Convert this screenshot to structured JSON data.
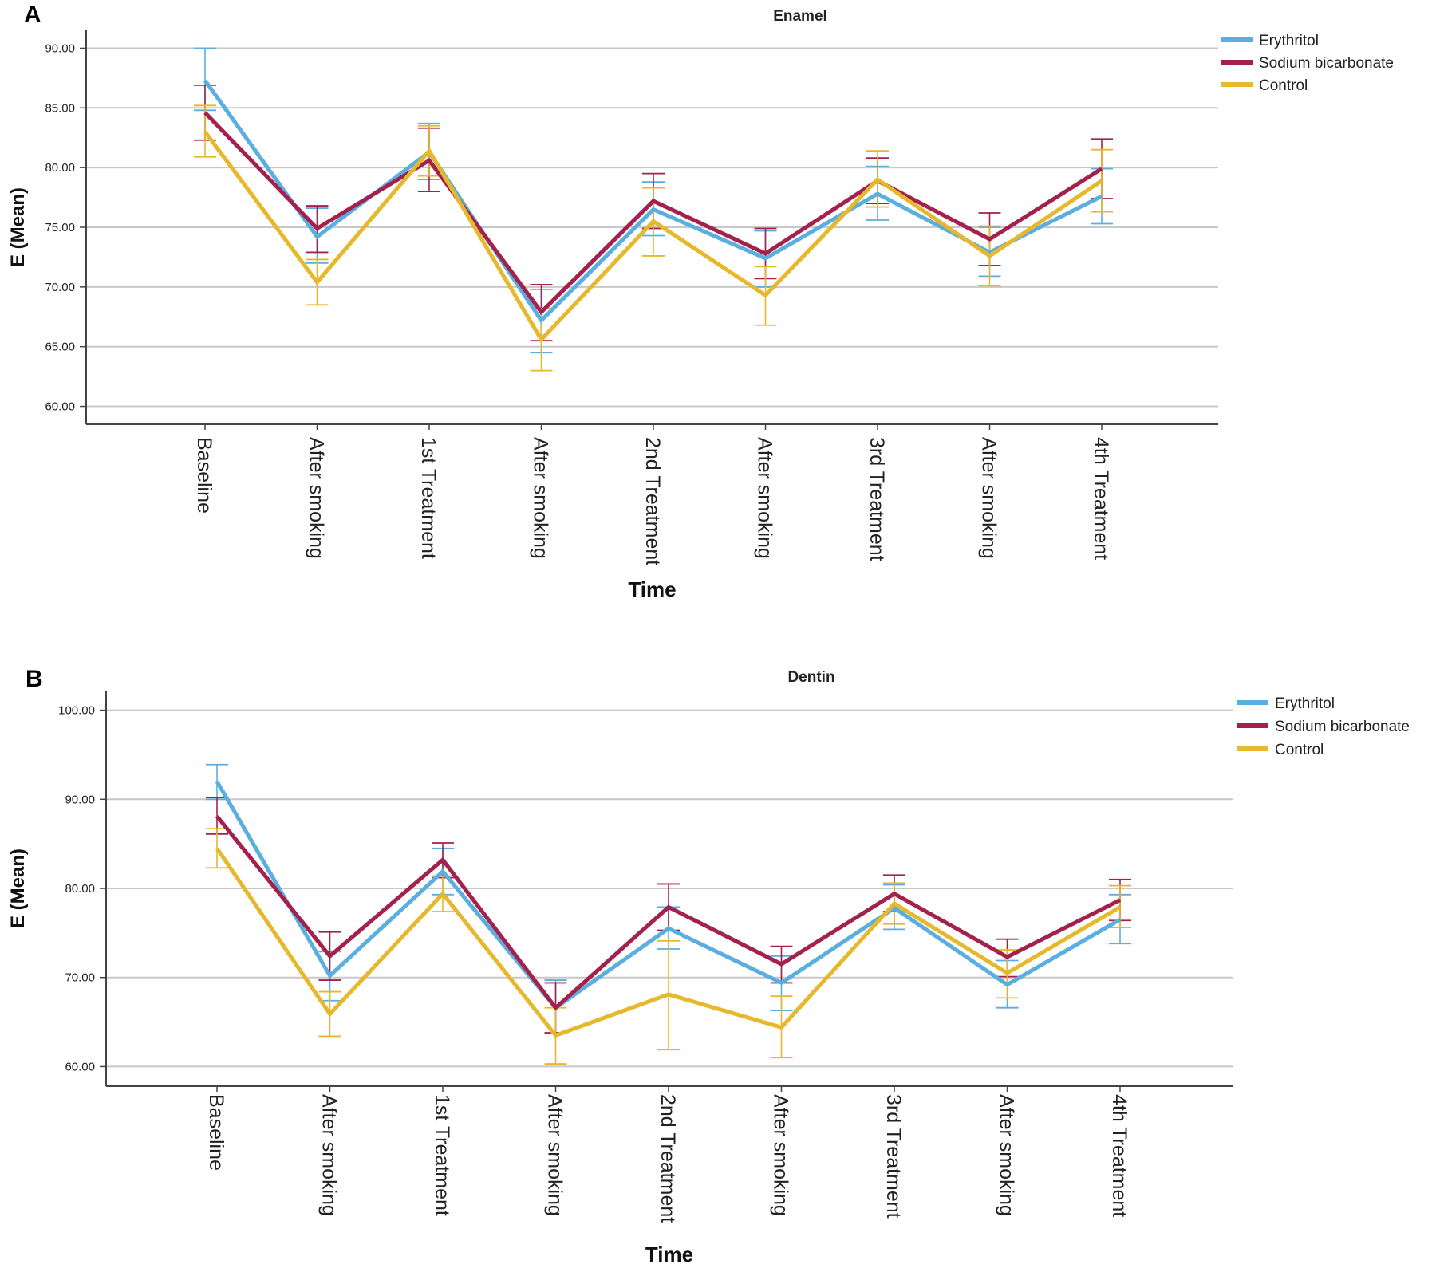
{
  "figure": {
    "panels": [
      {
        "letter": "A"
      },
      {
        "letter": "B"
      }
    ]
  },
  "colors": {
    "erythritol": "#5aaee0",
    "sodium_bicarbonate": "#a3214c",
    "control": "#e6b82b",
    "grid": "#c8c8c8",
    "axis": "#444444"
  },
  "chart_data": [
    {
      "type": "line",
      "title": "Enamel",
      "xlabel": "Time",
      "ylabel": "E (Mean)",
      "categories": [
        "Baseline",
        "After smoking",
        "1st Treatment",
        "After smoking",
        "2nd Treatment",
        "After smoking",
        "3rd Treatment",
        "After smoking",
        "4th Treatment"
      ],
      "ylim": [
        58.5,
        91.5
      ],
      "yticks": [
        60,
        65,
        70,
        75,
        80,
        85,
        90
      ],
      "ytick_labels": [
        "60.00",
        "65.00",
        "70.00",
        "75.00",
        "80.00",
        "85.00",
        "90.00"
      ],
      "grid": true,
      "legend_position": "top-right",
      "error_bars": true,
      "series": [
        {
          "name": "Erythritol",
          "color": "#5aaee0",
          "values": [
            87.3,
            74.2,
            81.3,
            67.2,
            76.5,
            72.4,
            77.8,
            72.9,
            77.6
          ],
          "err_low": [
            84.8,
            72.0,
            79.0,
            64.5,
            74.3,
            70.0,
            75.6,
            70.9,
            75.3
          ],
          "err_high": [
            90.0,
            76.6,
            83.7,
            69.8,
            78.8,
            74.7,
            80.1,
            75.0,
            79.9
          ]
        },
        {
          "name": "Sodium bicarbonate",
          "color": "#a3214c",
          "values": [
            84.6,
            74.9,
            80.6,
            67.9,
            77.2,
            72.8,
            78.9,
            74.0,
            79.9
          ],
          "err_low": [
            82.3,
            72.9,
            78.0,
            65.5,
            74.9,
            70.7,
            77.0,
            71.8,
            77.4
          ],
          "err_high": [
            86.9,
            76.8,
            83.3,
            70.2,
            79.5,
            74.9,
            80.8,
            76.2,
            82.4
          ]
        },
        {
          "name": "Control",
          "color": "#e6b82b",
          "values": [
            83.0,
            70.4,
            81.4,
            65.6,
            75.5,
            69.3,
            79.0,
            72.6,
            78.9
          ],
          "err_low": [
            80.9,
            68.5,
            79.3,
            63.0,
            72.6,
            66.8,
            76.7,
            70.1,
            76.3
          ],
          "err_high": [
            85.2,
            72.3,
            83.5,
            68.2,
            78.3,
            71.7,
            81.4,
            75.1,
            81.5
          ]
        }
      ]
    },
    {
      "type": "line",
      "title": "Dentin",
      "xlabel": "Time",
      "ylabel": "E (Mean)",
      "categories": [
        "Baseline",
        "After smoking",
        "1st Treatment",
        "After smoking",
        "2nd Treatment",
        "After smoking",
        "3rd Treatment",
        "After smoking",
        "4th Treatment"
      ],
      "ylim": [
        57.8,
        102.2
      ],
      "yticks": [
        60,
        70,
        80,
        90,
        100
      ],
      "ytick_labels": [
        "60.00",
        "70.00",
        "80.00",
        "90.00",
        "100.00"
      ],
      "grid": true,
      "legend_position": "top-right",
      "error_bars": true,
      "series": [
        {
          "name": "Erythritol",
          "color": "#5aaee0",
          "values": [
            92.0,
            70.2,
            81.9,
            66.6,
            75.5,
            69.4,
            77.8,
            69.2,
            76.5
          ],
          "err_low": [
            90.0,
            67.4,
            79.3,
            63.7,
            73.2,
            66.3,
            75.4,
            66.6,
            73.8
          ],
          "err_high": [
            93.9,
            72.9,
            84.5,
            69.7,
            77.9,
            72.4,
            80.4,
            71.9,
            79.3
          ]
        },
        {
          "name": "Sodium bicarbonate",
          "color": "#a3214c",
          "values": [
            88.1,
            72.4,
            83.2,
            66.6,
            77.9,
            71.5,
            79.4,
            72.3,
            78.7
          ],
          "err_low": [
            86.1,
            69.7,
            81.2,
            63.8,
            75.3,
            69.4,
            77.4,
            70.1,
            76.4
          ],
          "err_high": [
            90.2,
            75.1,
            85.1,
            69.4,
            80.5,
            73.5,
            81.5,
            74.3,
            81.0
          ]
        },
        {
          "name": "Control",
          "color": "#e6b82b",
          "values": [
            84.5,
            65.9,
            79.4,
            63.5,
            68.1,
            64.4,
            78.3,
            70.5,
            77.9
          ],
          "err_low": [
            82.3,
            63.4,
            77.4,
            60.3,
            61.9,
            61.0,
            76.0,
            67.7,
            75.6
          ],
          "err_high": [
            86.7,
            68.4,
            81.4,
            66.6,
            74.1,
            67.9,
            80.6,
            73.1,
            80.3
          ]
        }
      ]
    }
  ]
}
